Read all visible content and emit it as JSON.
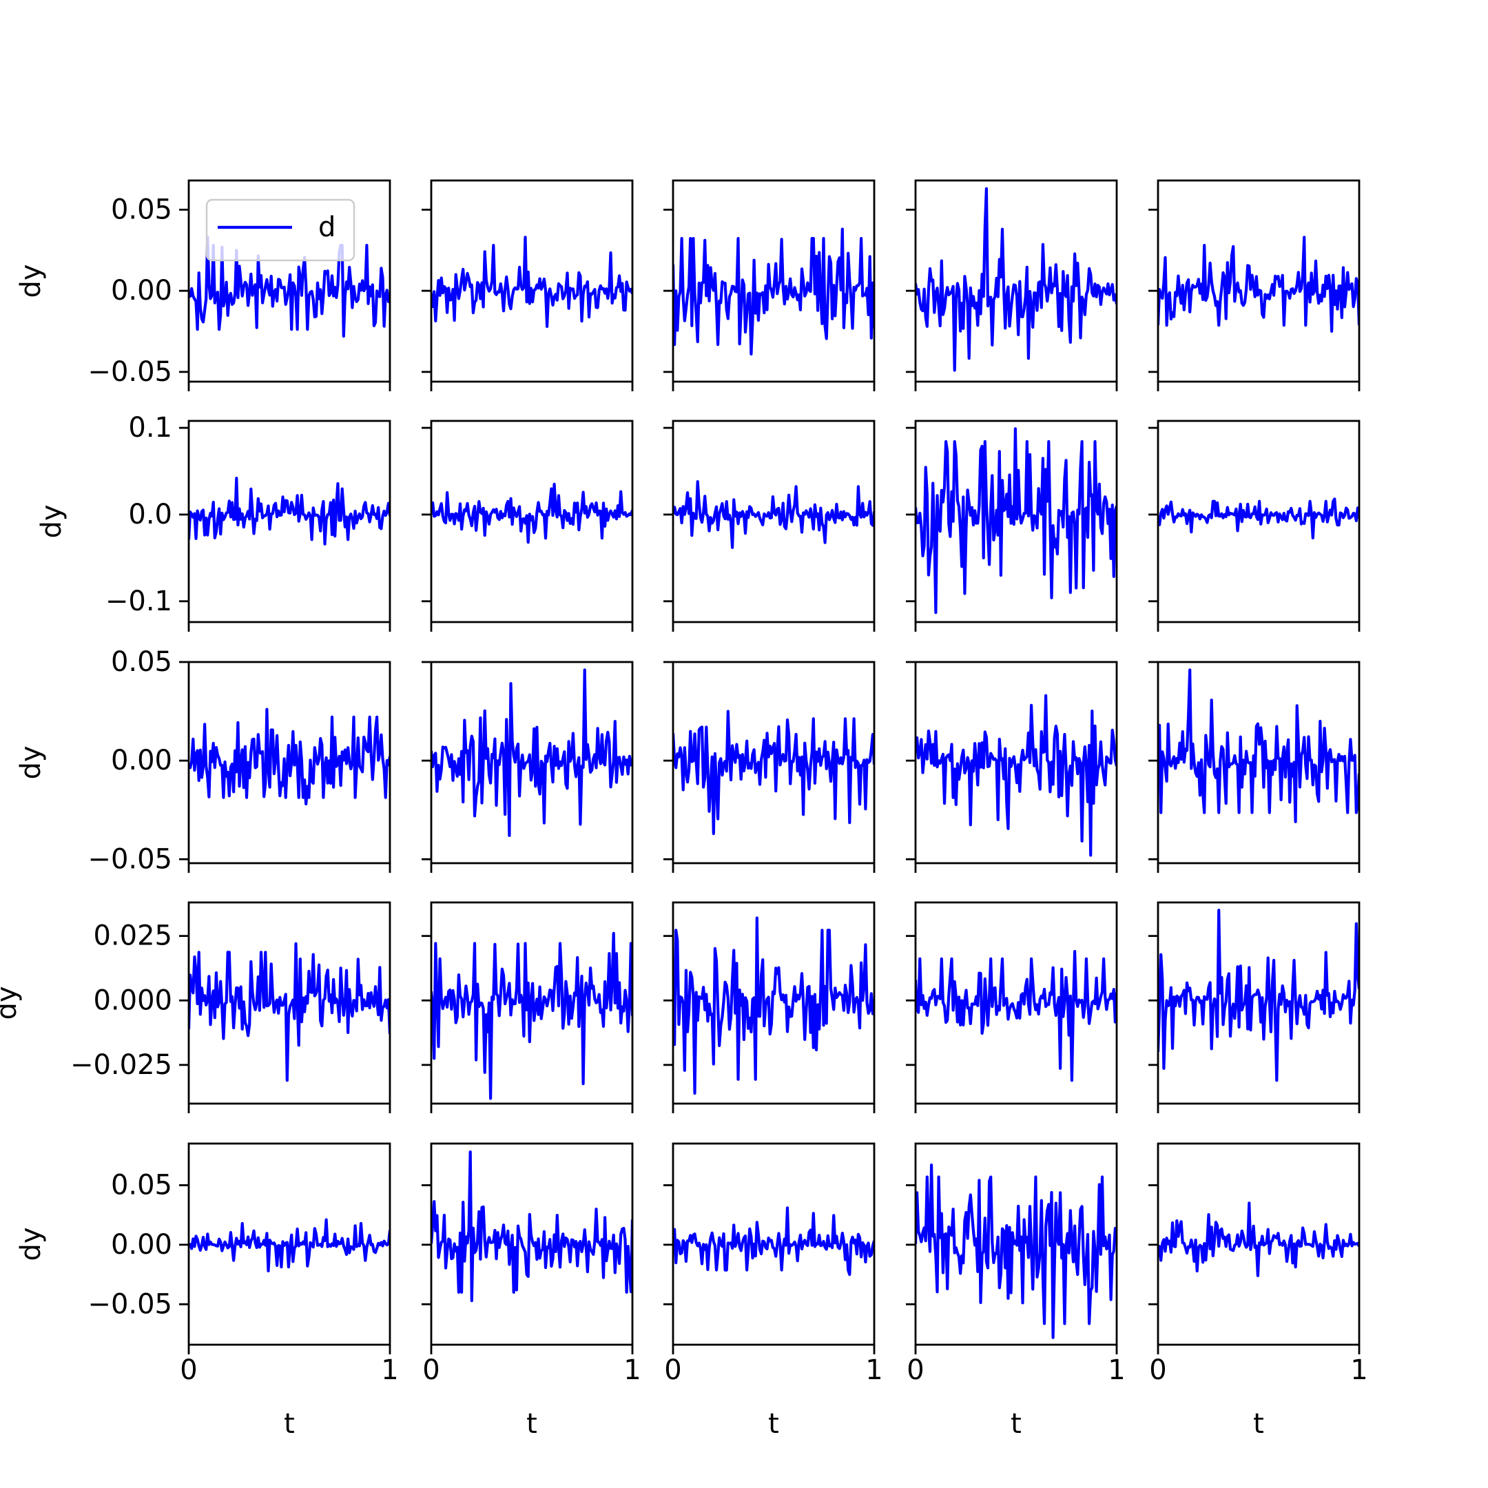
{
  "figure": {
    "line_color": "#0000ff",
    "xlabel": "t",
    "ylabel": "dy",
    "legend": {
      "label": "d",
      "placement": "upper-left-of-first-panel"
    }
  },
  "chart_data": [
    {
      "type": "line",
      "row": 0,
      "col": 0,
      "name": "d",
      "ylim": [
        -0.056,
        0.068
      ],
      "yticks": [
        -0.05,
        0.0,
        0.05
      ],
      "ytick_labels": [
        "−0.05",
        "0.00",
        "0.05"
      ],
      "xlim": [
        0,
        1
      ],
      "xticks": [
        0,
        1
      ],
      "amp": 0.012,
      "peak_min": -0.028,
      "peak_max": 0.033
    },
    {
      "type": "line",
      "row": 0,
      "col": 1,
      "ylim": [
        -0.056,
        0.068
      ],
      "xlim": [
        0,
        1
      ],
      "amp": 0.01,
      "peak_min": -0.022,
      "peak_max": 0.033
    },
    {
      "type": "line",
      "row": 0,
      "col": 2,
      "ylim": [
        -0.056,
        0.068
      ],
      "xlim": [
        0,
        1
      ],
      "amp": 0.016,
      "peak_min": -0.039,
      "peak_max": 0.038
    },
    {
      "type": "line",
      "row": 0,
      "col": 3,
      "ylim": [
        -0.056,
        0.068
      ],
      "xlim": [
        0,
        1
      ],
      "amp": 0.012,
      "peak_min": -0.049,
      "peak_max": 0.063
    },
    {
      "type": "line",
      "row": 0,
      "col": 4,
      "ylim": [
        -0.056,
        0.068
      ],
      "xlim": [
        0,
        1
      ],
      "amp": 0.011,
      "peak_min": -0.025,
      "peak_max": 0.033
    },
    {
      "type": "line",
      "row": 1,
      "col": 0,
      "ylim": [
        -0.124,
        0.108
      ],
      "yticks": [
        -0.1,
        0.0,
        0.1
      ],
      "ytick_labels": [
        "−0.1",
        "0.0",
        "0.1"
      ],
      "xlim": [
        0,
        1
      ],
      "amp": 0.012,
      "peak_min": -0.034,
      "peak_max": 0.042
    },
    {
      "type": "line",
      "row": 1,
      "col": 1,
      "ylim": [
        -0.124,
        0.108
      ],
      "xlim": [
        0,
        1
      ],
      "amp": 0.01,
      "peak_min": -0.032,
      "peak_max": 0.035
    },
    {
      "type": "line",
      "row": 1,
      "col": 2,
      "ylim": [
        -0.124,
        0.108
      ],
      "xlim": [
        0,
        1
      ],
      "amp": 0.01,
      "peak_min": -0.038,
      "peak_max": 0.038
    },
    {
      "type": "line",
      "row": 1,
      "col": 3,
      "ylim": [
        -0.124,
        0.108
      ],
      "xlim": [
        0,
        1
      ],
      "amp": 0.04,
      "peak_min": -0.113,
      "peak_max": 0.099
    },
    {
      "type": "line",
      "row": 1,
      "col": 4,
      "ylim": [
        -0.124,
        0.108
      ],
      "xlim": [
        0,
        1
      ],
      "amp": 0.006,
      "peak_min": -0.027,
      "peak_max": 0.018
    },
    {
      "type": "line",
      "row": 2,
      "col": 0,
      "ylim": [
        -0.052,
        0.05
      ],
      "yticks": [
        -0.05,
        0.0,
        0.05
      ],
      "ytick_labels": [
        "−0.05",
        "0.00",
        "0.05"
      ],
      "xlim": [
        0,
        1
      ],
      "amp": 0.01,
      "peak_min": -0.022,
      "peak_max": 0.026
    },
    {
      "type": "line",
      "row": 2,
      "col": 1,
      "ylim": [
        -0.052,
        0.05
      ],
      "xlim": [
        0,
        1
      ],
      "amp": 0.012,
      "peak_min": -0.038,
      "peak_max": 0.046
    },
    {
      "type": "line",
      "row": 2,
      "col": 2,
      "ylim": [
        -0.052,
        0.05
      ],
      "xlim": [
        0,
        1
      ],
      "amp": 0.01,
      "peak_min": -0.037,
      "peak_max": 0.025
    },
    {
      "type": "line",
      "row": 2,
      "col": 3,
      "ylim": [
        -0.052,
        0.05
      ],
      "xlim": [
        0,
        1
      ],
      "amp": 0.012,
      "peak_min": -0.048,
      "peak_max": 0.033
    },
    {
      "type": "line",
      "row": 2,
      "col": 4,
      "ylim": [
        -0.052,
        0.05
      ],
      "xlim": [
        0,
        1
      ],
      "amp": 0.012,
      "peak_min": -0.031,
      "peak_max": 0.046
    },
    {
      "type": "line",
      "row": 3,
      "col": 0,
      "ylim": [
        -0.04,
        0.038
      ],
      "yticks": [
        -0.025,
        0.0,
        0.025
      ],
      "ytick_labels": [
        "−0.025",
        "0.000",
        "0.025"
      ],
      "xlim": [
        0,
        1
      ],
      "amp": 0.008,
      "peak_min": -0.031,
      "peak_max": 0.022
    },
    {
      "type": "line",
      "row": 3,
      "col": 1,
      "ylim": [
        -0.04,
        0.038
      ],
      "xlim": [
        0,
        1
      ],
      "amp": 0.009,
      "peak_min": -0.038,
      "peak_max": 0.026
    },
    {
      "type": "line",
      "row": 3,
      "col": 2,
      "ylim": [
        -0.04,
        0.038
      ],
      "xlim": [
        0,
        1
      ],
      "amp": 0.009,
      "peak_min": -0.036,
      "peak_max": 0.032
    },
    {
      "type": "line",
      "row": 3,
      "col": 3,
      "ylim": [
        -0.04,
        0.038
      ],
      "xlim": [
        0,
        1
      ],
      "amp": 0.008,
      "peak_min": -0.031,
      "peak_max": 0.019
    },
    {
      "type": "line",
      "row": 3,
      "col": 4,
      "ylim": [
        -0.04,
        0.038
      ],
      "xlim": [
        0,
        1
      ],
      "amp": 0.008,
      "peak_min": -0.031,
      "peak_max": 0.035
    },
    {
      "type": "line",
      "row": 4,
      "col": 0,
      "ylim": [
        -0.084,
        0.085
      ],
      "yticks": [
        -0.05,
        0.0,
        0.05
      ],
      "ytick_labels": [
        "−0.05",
        "0.00",
        "0.05"
      ],
      "xlim": [
        0,
        1
      ],
      "xticks": [
        0,
        1
      ],
      "xtick_labels": [
        "0",
        "1"
      ],
      "amp": 0.006,
      "peak_min": -0.022,
      "peak_max": 0.021
    },
    {
      "type": "line",
      "row": 4,
      "col": 1,
      "ylim": [
        -0.084,
        0.085
      ],
      "xlim": [
        0,
        1
      ],
      "xticks": [
        0,
        1
      ],
      "xtick_labels": [
        "0",
        "1"
      ],
      "amp": 0.018,
      "peak_min": -0.047,
      "peak_max": 0.078
    },
    {
      "type": "line",
      "row": 4,
      "col": 2,
      "ylim": [
        -0.084,
        0.085
      ],
      "xlim": [
        0,
        1
      ],
      "xticks": [
        0,
        1
      ],
      "xtick_labels": [
        "0",
        "1"
      ],
      "amp": 0.008,
      "peak_min": -0.025,
      "peak_max": 0.031
    },
    {
      "type": "line",
      "row": 4,
      "col": 3,
      "ylim": [
        -0.084,
        0.085
      ],
      "xlim": [
        0,
        1
      ],
      "xticks": [
        0,
        1
      ],
      "xtick_labels": [
        "0",
        "1"
      ],
      "amp": 0.025,
      "peak_min": -0.078,
      "peak_max": 0.067
    },
    {
      "type": "line",
      "row": 4,
      "col": 4,
      "ylim": [
        -0.084,
        0.085
      ],
      "xlim": [
        0,
        1
      ],
      "xticks": [
        0,
        1
      ],
      "xtick_labels": [
        "0",
        "1"
      ],
      "amp": 0.008,
      "peak_min": -0.026,
      "peak_max": 0.035
    }
  ]
}
